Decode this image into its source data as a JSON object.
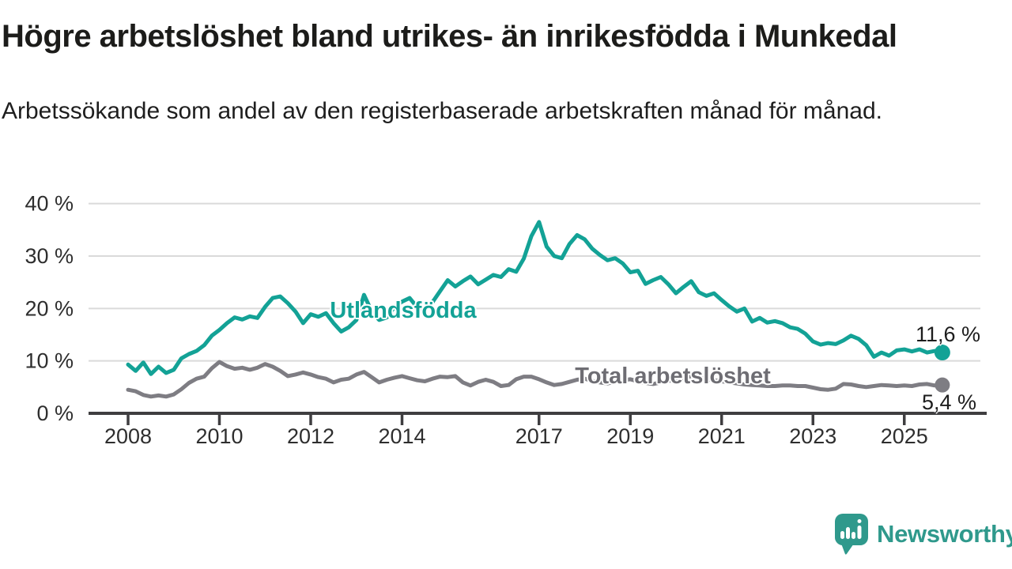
{
  "header": {
    "title": "Högre arbetslöshet bland utrikes- än inrikesfödda i Munkedal",
    "subtitle": "Arbetssökande som andel av den registerbaserade arbetskraften månad för månad."
  },
  "chart_data": {
    "type": "line",
    "unit": "%",
    "x_start": 2008,
    "x_step_years": 0.166667,
    "xlim": [
      2007.5,
      2026.8
    ],
    "ylim": [
      0,
      42
    ],
    "grid": "horizontal",
    "legend_position": "inline-labels",
    "y_ticks": [
      {
        "value": 0,
        "label": "0 %"
      },
      {
        "value": 10,
        "label": "10 %"
      },
      {
        "value": 20,
        "label": "20 %"
      },
      {
        "value": 30,
        "label": "30 %"
      },
      {
        "value": 40,
        "label": "40 %"
      }
    ],
    "x_ticks": [
      {
        "value": 2008,
        "label": "2008"
      },
      {
        "value": 2010,
        "label": "2010"
      },
      {
        "value": 2012,
        "label": "2012"
      },
      {
        "value": 2014,
        "label": "2014"
      },
      {
        "value": 2017,
        "label": "2017"
      },
      {
        "value": 2019,
        "label": "2019"
      },
      {
        "value": 2021,
        "label": "2021"
      },
      {
        "value": 2023,
        "label": "2023"
      },
      {
        "value": 2025,
        "label": "2025"
      }
    ],
    "series": [
      {
        "name": "Utlandsfödda",
        "color": "#13a296",
        "end_label": "11,6 %",
        "end_value": 11.6,
        "values": [
          9.3,
          8.1,
          9.7,
          7.5,
          8.9,
          7.7,
          8.3,
          10.5,
          11.3,
          11.9,
          13.0,
          14.8,
          15.9,
          17.2,
          18.3,
          17.9,
          18.5,
          18.2,
          20.3,
          22.0,
          22.3,
          21.0,
          19.4,
          17.2,
          18.9,
          18.4,
          19.1,
          17.2,
          15.6,
          16.4,
          17.8,
          22.6,
          19.5,
          17.8,
          18.3,
          20.3,
          21.3,
          22.0,
          20.2,
          19.9,
          21.2,
          23.3,
          25.4,
          24.2,
          25.2,
          26.1,
          24.6,
          25.5,
          26.4,
          26.0,
          27.5,
          27.0,
          29.5,
          33.8,
          36.5,
          31.8,
          30.0,
          29.6,
          32.3,
          34.0,
          33.2,
          31.4,
          30.2,
          29.2,
          29.6,
          28.6,
          26.9,
          27.2,
          24.7,
          25.4,
          26.0,
          24.6,
          22.9,
          24.1,
          25.2,
          23.1,
          22.4,
          22.9,
          21.6,
          20.4,
          19.4,
          20.0,
          17.5,
          18.2,
          17.3,
          17.6,
          17.2,
          16.4,
          16.1,
          15.2,
          13.7,
          13.1,
          13.4,
          13.2,
          13.9,
          14.8,
          14.2,
          13.0,
          10.8,
          11.6,
          11.0,
          12.0,
          12.2,
          11.8,
          12.2,
          11.6,
          11.9,
          11.6
        ]
      },
      {
        "name": "Total arbetslöshet",
        "color": "#7e7d83",
        "end_label": "5,4 %",
        "end_value": 5.4,
        "values": [
          4.5,
          4.2,
          3.5,
          3.2,
          3.4,
          3.2,
          3.6,
          4.6,
          5.8,
          6.6,
          7.0,
          8.6,
          9.8,
          9.0,
          8.5,
          8.7,
          8.3,
          8.7,
          9.4,
          8.9,
          8.1,
          7.1,
          7.4,
          7.8,
          7.4,
          6.9,
          6.6,
          5.9,
          6.4,
          6.6,
          7.4,
          7.9,
          6.9,
          5.9,
          6.4,
          6.8,
          7.1,
          6.7,
          6.3,
          6.1,
          6.6,
          7.0,
          6.9,
          7.1,
          5.9,
          5.3,
          6.0,
          6.4,
          6.0,
          5.2,
          5.4,
          6.5,
          7.0,
          7.0,
          6.5,
          5.9,
          5.4,
          5.6,
          6.0,
          6.4,
          6.6,
          6.2,
          5.9,
          5.7,
          6.0,
          6.3,
          6.5,
          6.1,
          5.8,
          5.6,
          5.9,
          6.2,
          6.3,
          6.7,
          7.1,
          6.8,
          6.5,
          6.3,
          6.1,
          5.9,
          5.7,
          5.5,
          5.4,
          5.3,
          5.2,
          5.2,
          5.3,
          5.3,
          5.2,
          5.2,
          4.9,
          4.6,
          4.5,
          4.7,
          5.6,
          5.5,
          5.2,
          5.0,
          5.2,
          5.4,
          5.3,
          5.2,
          5.3,
          5.2,
          5.5,
          5.6,
          5.3,
          5.4
        ]
      }
    ],
    "style": {
      "grid_color": "#dadada",
      "axis_color": "#3f3e40",
      "tick_label_color": "#2e2e2e"
    }
  },
  "footer": {
    "brand": "Newsworthy",
    "brand_color": "#2f998c"
  }
}
